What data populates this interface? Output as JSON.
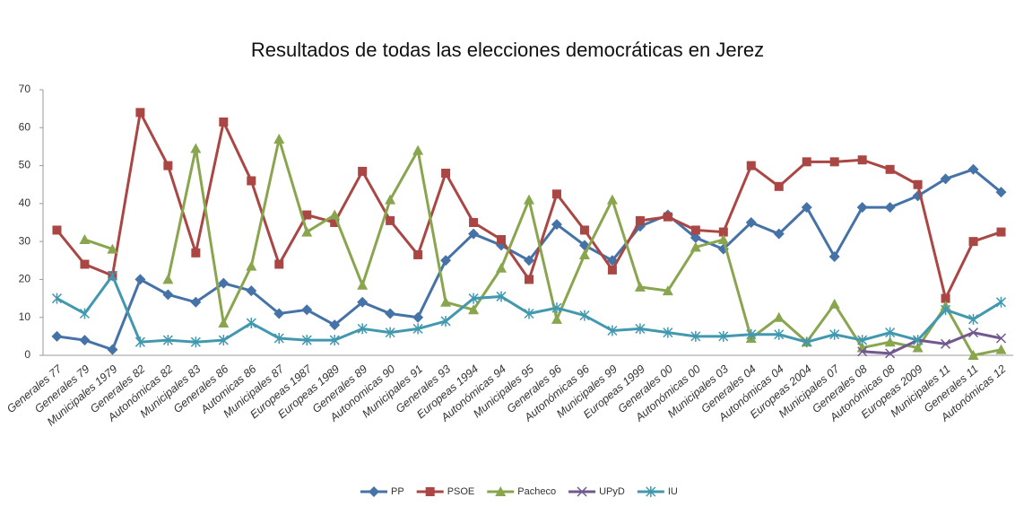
{
  "chart_data": {
    "type": "line",
    "title": "Resultados de todas las elecciones democráticas en Jerez",
    "categories": [
      "Generales 77",
      "Generales 79",
      "Municipales 1979",
      "Generales 82",
      "Autonómicas 82",
      "Municipales 83",
      "Generales 86",
      "Automicas 86",
      "Municipales 87",
      "Europeas 1987",
      "Europeas 1989",
      "Generales 89",
      "Autonomicas 90",
      "Municipales 91",
      "Generales 93",
      "Europeas 1994",
      "Autonómicas 94",
      "Municipales 95",
      "Generales 96",
      "Autonómicas 96",
      "Municipales 99",
      "Europeas 1999",
      "Generales 00",
      "Autonómicas 00",
      "Municipales 03",
      "Generales 04",
      "Autonómicas 04",
      "Europeas 2004",
      "Municipales 07",
      "Generales 08",
      "Autonómicas 08",
      "Europeas 2009",
      "Municipales 11",
      "Generales 11",
      "Autonómicas 12"
    ],
    "series": [
      {
        "name": "PP",
        "color": "#4572a7",
        "values": [
          5,
          4,
          1.5,
          20,
          16,
          14,
          19,
          17,
          11,
          12,
          8,
          14,
          11,
          10,
          25,
          32,
          29,
          25,
          34.5,
          29,
          25,
          34,
          37,
          31,
          28,
          35,
          32,
          39,
          26,
          39,
          39,
          42,
          46.5,
          49,
          43
        ]
      },
      {
        "name": "PSOE",
        "color": "#aa4643",
        "values": [
          33,
          24,
          21,
          64,
          50,
          27,
          61.5,
          46,
          24,
          37,
          35,
          48.5,
          35.5,
          26.5,
          48,
          35,
          30.5,
          20,
          42.5,
          33,
          22.5,
          35.5,
          36.5,
          33,
          32.5,
          50,
          44.5,
          51,
          51,
          51.5,
          49,
          45,
          15,
          30,
          32.5
        ]
      },
      {
        "name": "Pacheco",
        "color": "#89a54e",
        "values": [
          null,
          30.5,
          28,
          null,
          20,
          54.5,
          8.5,
          23.5,
          57,
          32.5,
          37,
          18.5,
          41,
          54,
          14,
          12,
          23,
          41,
          9.5,
          26.5,
          41,
          18,
          17,
          28.5,
          30.5,
          4.5,
          10,
          3.5,
          13.5,
          2,
          3.5,
          2,
          13,
          0,
          1.5
        ]
      },
      {
        "name": "UPyD",
        "color": "#71588f",
        "values": [
          null,
          null,
          null,
          null,
          null,
          null,
          null,
          null,
          null,
          null,
          null,
          null,
          null,
          null,
          null,
          null,
          null,
          null,
          null,
          null,
          null,
          null,
          null,
          null,
          null,
          null,
          null,
          null,
          null,
          1,
          0.5,
          4,
          3,
          6,
          4.5
        ]
      },
      {
        "name": "IU",
        "color": "#4198af",
        "values": [
          15,
          11,
          21,
          3.5,
          4,
          3.5,
          4,
          8.5,
          4.5,
          4,
          4,
          7,
          6,
          7,
          9,
          15,
          15.5,
          11,
          12.5,
          10.5,
          6.5,
          7,
          6,
          5,
          5,
          5.5,
          5.5,
          3.5,
          5.5,
          4,
          6,
          4,
          12,
          9.5,
          14
        ]
      }
    ],
    "ylim": [
      0,
      70
    ],
    "yticks": [
      0,
      10,
      20,
      30,
      40,
      50,
      60,
      70
    ],
    "legend": "bottom"
  }
}
